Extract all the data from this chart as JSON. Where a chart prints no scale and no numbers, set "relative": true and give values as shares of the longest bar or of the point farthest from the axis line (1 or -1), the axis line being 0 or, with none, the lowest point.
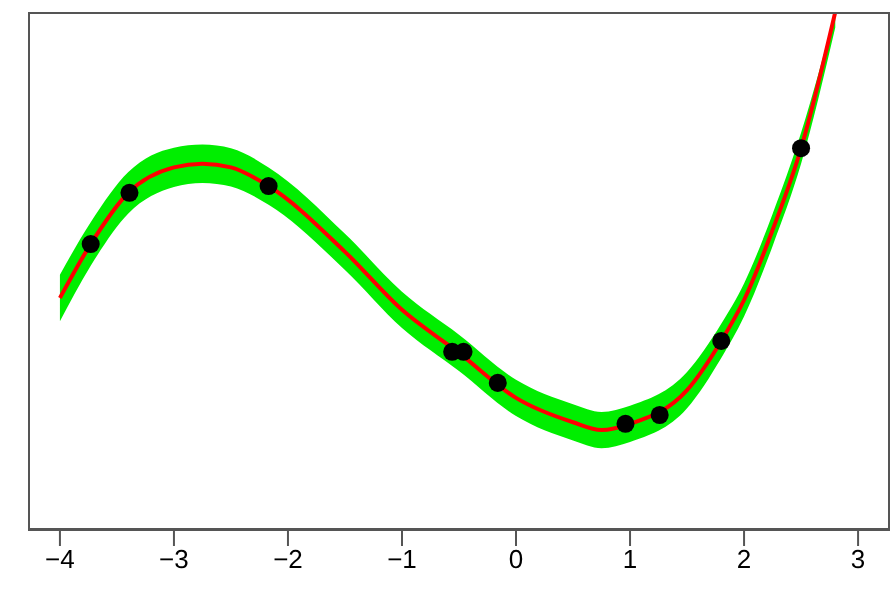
{
  "chart_data": {
    "type": "line",
    "relative": true,
    "xlim": [
      -4.28,
      3.28
    ],
    "xticks": [
      -4,
      -3,
      -2,
      -1,
      0,
      1,
      2,
      3
    ],
    "series": [
      {
        "color": "#ff0000",
        "marker": "none",
        "line_style": "solid",
        "x": [
          -4,
          -3.73,
          -3.4,
          -3.0,
          -2.75,
          -2.5,
          -2.17,
          -1.5,
          -1,
          -0.5,
          0,
          0.5,
          0.75,
          1,
          1.5,
          1.8,
          2.0,
          2.25,
          2.5,
          2.8
        ],
        "values": [
          0.448,
          0.552,
          0.651,
          0.7,
          0.707,
          0.7,
          0.664,
          0.537,
          0.425,
          0.342,
          0.255,
          0.208,
          0.193,
          0.205,
          0.27,
          0.365,
          0.444,
          0.579,
          0.737,
          1.0
        ],
        "lower": [
          0.403,
          0.51,
          0.611,
          0.662,
          0.67,
          0.663,
          0.628,
          0.502,
          0.39,
          0.307,
          0.22,
          0.173,
          0.158,
          0.17,
          0.235,
          0.332,
          0.412,
          0.548,
          0.707,
          0.97
        ],
        "upper": [
          0.493,
          0.594,
          0.691,
          0.738,
          0.744,
          0.737,
          0.7,
          0.572,
          0.46,
          0.377,
          0.29,
          0.243,
          0.228,
          0.24,
          0.305,
          0.398,
          0.476,
          0.61,
          0.767,
          1.0
        ]
      },
      {
        "type": "scatter",
        "color": "#000000",
        "marker": "circle",
        "x": [
          -3.73,
          -3.39,
          -2.17,
          -0.56,
          -0.46,
          -0.16,
          0.96,
          1.26,
          1.8,
          2.5
        ],
        "values": [
          0.552,
          0.651,
          0.664,
          0.344,
          0.344,
          0.284,
          0.205,
          0.222,
          0.365,
          0.737
        ]
      }
    ]
  }
}
